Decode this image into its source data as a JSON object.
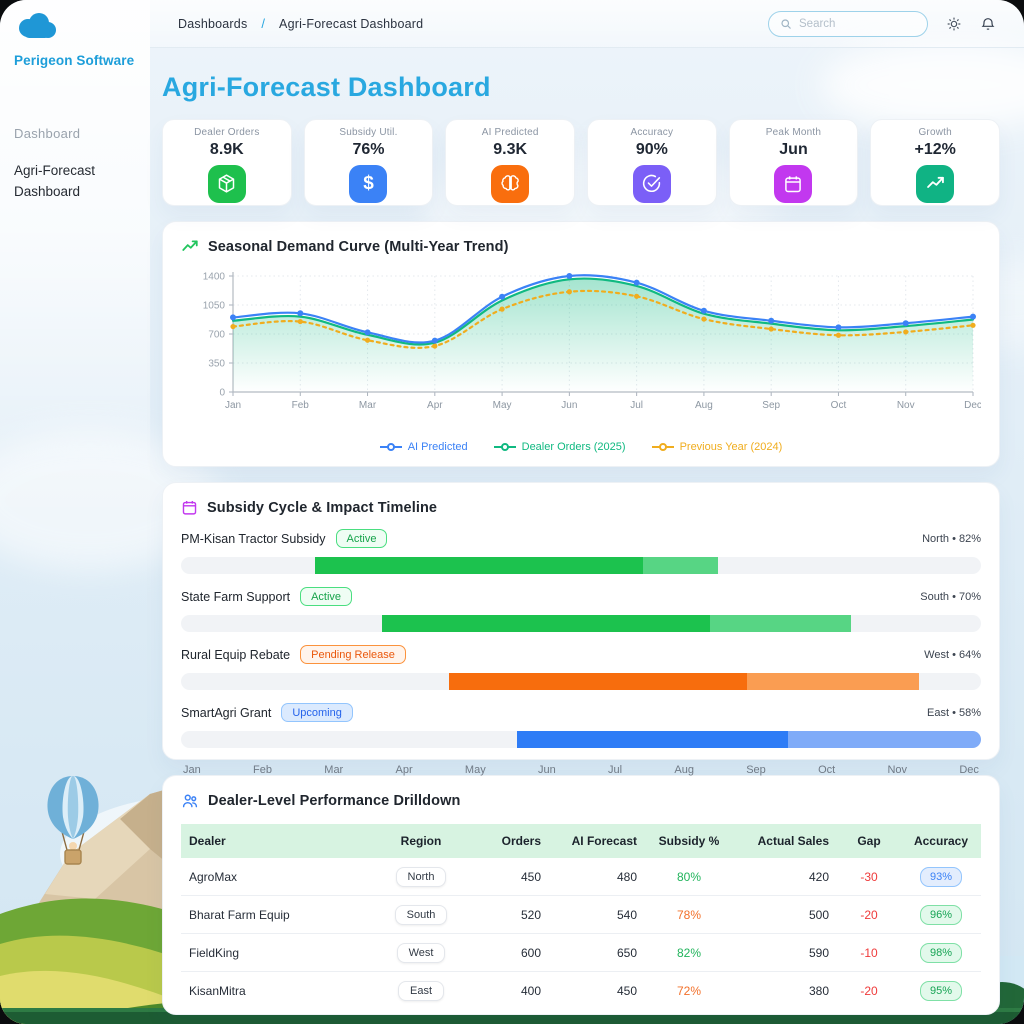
{
  "colors": {
    "brand_blue": "#29a8e0",
    "series_ai": "#3b82f6",
    "series_orders": "#10b981",
    "series_prev": "#f0ad1e",
    "timeline_green": "#1cc24e",
    "timeline_green_light": "#57d584",
    "timeline_orange": "#f76d0d",
    "timeline_orange_light": "#fa9d52",
    "timeline_blue": "#2e7cf6",
    "timeline_blue_light": "#7fabf8"
  },
  "brand": {
    "name": "Perigeon Software"
  },
  "sidebar": {
    "section_label": "Dashboard",
    "items": [
      {
        "label": "Agri-Forecast Dashboard"
      }
    ]
  },
  "topbar": {
    "breadcrumb": [
      "Dashboards",
      "Agri-Forecast Dashboard"
    ],
    "separator": "/",
    "search_placeholder": "Search"
  },
  "page": {
    "title": "Agri-Forecast Dashboard"
  },
  "kpis": [
    {
      "label": "Dealer Orders",
      "value": "8.9K",
      "icon": "package-icon",
      "color": "#1ec04d"
    },
    {
      "label": "Subsidy Util.",
      "value": "76%",
      "icon": "dollar-icon",
      "color": "#3b82f6"
    },
    {
      "label": "AI Predicted",
      "value": "9.3K",
      "icon": "brain-icon",
      "color": "#f96e0e"
    },
    {
      "label": "Accuracy",
      "value": "90%",
      "icon": "check-circle-icon",
      "color": "#7b5ff7"
    },
    {
      "label": "Peak Month",
      "value": "Jun",
      "icon": "calendar-icon",
      "color": "#c238ef"
    },
    {
      "label": "Growth",
      "value": "+12%",
      "icon": "trend-up-icon",
      "color": "#10b384"
    }
  ],
  "chart_card": {
    "title": "Seasonal Demand Curve (Multi-Year Trend)"
  },
  "chart_data": {
    "type": "line",
    "title": "Seasonal Demand Curve (Multi-Year Trend)",
    "x": [
      "Jan",
      "Feb",
      "Mar",
      "Apr",
      "May",
      "Jun",
      "Jul",
      "Aug",
      "Sep",
      "Oct",
      "Nov",
      "Dec"
    ],
    "ylim": [
      0,
      1400
    ],
    "yticks": [
      0,
      350,
      700,
      1050,
      1400
    ],
    "grid": true,
    "legend_position": "bottom",
    "series": [
      {
        "name": "AI Predicted",
        "color": "#3b82f6",
        "style": "solid",
        "marker": "circle",
        "area": false,
        "values": [
          900,
          950,
          720,
          620,
          1150,
          1400,
          1320,
          980,
          860,
          780,
          830,
          910
        ]
      },
      {
        "name": "Dealer Orders (2025)",
        "color": "#10b981",
        "style": "solid",
        "marker": "none",
        "area": true,
        "values": [
          860,
          910,
          690,
          595,
          1105,
          1360,
          1280,
          945,
          825,
          745,
          795,
          875
        ]
      },
      {
        "name": "Previous Year (2024)",
        "color": "#f0ad1e",
        "style": "dashed",
        "marker": "circle",
        "area": false,
        "values": [
          790,
          850,
          625,
          555,
          1000,
          1210,
          1155,
          880,
          760,
          685,
          725,
          805
        ]
      }
    ]
  },
  "timeline": {
    "title": "Subsidy Cycle & Impact Timeline",
    "months": [
      "Jan",
      "Feb",
      "Mar",
      "Apr",
      "May",
      "Jun",
      "Jul",
      "Aug",
      "Sep",
      "Oct",
      "Nov",
      "Dec"
    ],
    "rows": [
      {
        "name": "PM-Kisan Tractor Subsidy",
        "badge": "Active",
        "badge_variant": "active",
        "region_label": "North • 82%",
        "color": "green",
        "start_pct": 16.8,
        "solid_end_pct": 57.7,
        "light_end_pct": 67.1
      },
      {
        "name": "State Farm Support",
        "badge": "Active",
        "badge_variant": "active",
        "region_label": "South • 70%",
        "color": "green",
        "start_pct": 25.1,
        "solid_end_pct": 66.1,
        "light_end_pct": 83.8
      },
      {
        "name": "Rural Equip Rebate",
        "badge": "Pending Release",
        "badge_variant": "pending",
        "region_label": "West • 64%",
        "color": "orange",
        "start_pct": 33.5,
        "solid_end_pct": 70.8,
        "light_end_pct": 92.2
      },
      {
        "name": "SmartAgri Grant",
        "badge": "Upcoming",
        "badge_variant": "upcoming",
        "region_label": "East • 58%",
        "color": "blue",
        "start_pct": 42.0,
        "solid_end_pct": 75.9,
        "light_end_pct": 100
      }
    ]
  },
  "table": {
    "title": "Dealer-Level Performance Drilldown",
    "columns": [
      "Dealer",
      "Region",
      "Orders",
      "AI Forecast",
      "Subsidy %",
      "Actual Sales",
      "Gap",
      "Accuracy"
    ],
    "rows": [
      {
        "dealer": "AgroMax",
        "region": "North",
        "orders": "450",
        "ai_forecast": "480",
        "subsidy_pct": "80%",
        "subsidy_tone": "green",
        "actual_sales": "420",
        "gap": "-30",
        "accuracy": "93%",
        "accuracy_tone": "blue"
      },
      {
        "dealer": "Bharat Farm Equip",
        "region": "South",
        "orders": "520",
        "ai_forecast": "540",
        "subsidy_pct": "78%",
        "subsidy_tone": "orange",
        "actual_sales": "500",
        "gap": "-20",
        "accuracy": "96%",
        "accuracy_tone": "green"
      },
      {
        "dealer": "FieldKing",
        "region": "West",
        "orders": "600",
        "ai_forecast": "650",
        "subsidy_pct": "82%",
        "subsidy_tone": "green",
        "actual_sales": "590",
        "gap": "-10",
        "accuracy": "98%",
        "accuracy_tone": "green"
      },
      {
        "dealer": "KisanMitra",
        "region": "East",
        "orders": "400",
        "ai_forecast": "450",
        "subsidy_pct": "72%",
        "subsidy_tone": "orange",
        "actual_sales": "380",
        "gap": "-20",
        "accuracy": "95%",
        "accuracy_tone": "green"
      }
    ]
  }
}
